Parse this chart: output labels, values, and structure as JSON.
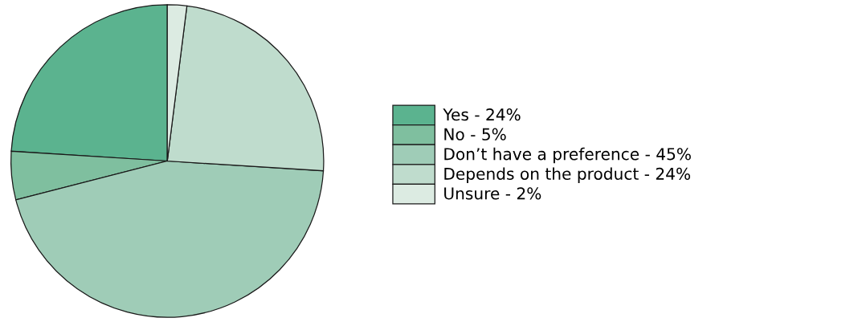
{
  "chart_data": {
    "type": "pie",
    "categories": [
      "Yes - 24%",
      "No - 5%",
      "Don’t have a preference - 45%",
      "Depends on the product - 24%",
      "Unsure - 2%"
    ],
    "values": [
      24,
      5,
      45,
      24,
      2
    ],
    "colors": [
      "#5bb38f",
      "#7fbf9f",
      "#9fccb7",
      "#bfdccd",
      "#dcebe2"
    ],
    "legend": "right"
  }
}
